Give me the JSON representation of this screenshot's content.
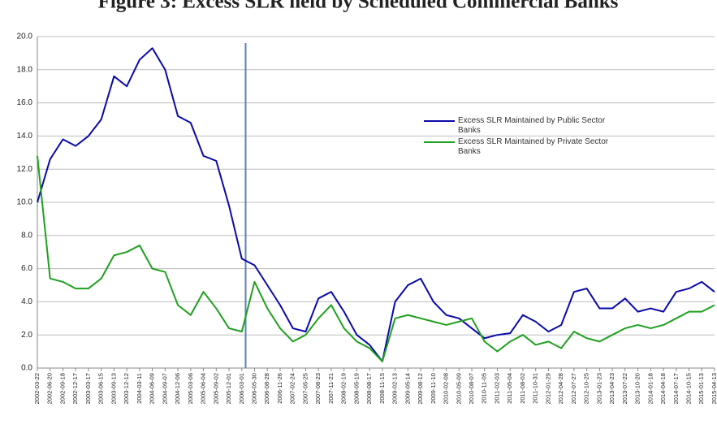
{
  "chart_data": {
    "type": "line",
    "title": "Figure 3: Excess SLR held by Scheduled Commercial Banks",
    "categories": [
      "2002-03-22",
      "2002-06-20",
      "2002-09-18",
      "2002-12-17",
      "2003-03-17",
      "2003-06-15",
      "2003-09-13",
      "2003-12-12",
      "2004-03-11",
      "2004-06-09",
      "2004-09-07",
      "2004-12-06",
      "2005-03-06",
      "2005-06-04",
      "2005-09-02",
      "2005-12-01",
      "2006-03-01",
      "2006-05-30",
      "2006-08-28",
      "2006-11-26",
      "2007-02-24",
      "2007-05-25",
      "2007-08-23",
      "2007-11-21",
      "2008-02-19",
      "2008-05-19",
      "2008-08-17",
      "2008-11-15",
      "2009-02-13",
      "2009-05-14",
      "2009-08-12",
      "2009-11-10",
      "2010-02-08",
      "2010-05-09",
      "2010-08-07",
      "2010-11-05",
      "2011-02-03",
      "2011-05-04",
      "2011-08-02",
      "2011-10-31",
      "2012-01-29",
      "2012-04-28",
      "2012-07-27",
      "2012-10-25",
      "2013-01-23",
      "2013-04-23",
      "2013-07-22",
      "2013-10-20",
      "2014-01-18",
      "2014-04-18",
      "2014-07-17",
      "2014-10-15",
      "2015-01-13",
      "2015-04-13"
    ],
    "series": [
      {
        "name": "Excess SLR Maintained by Public Sector Banks",
        "color": "#0a0aa8",
        "values": [
          10.0,
          12.6,
          13.8,
          13.4,
          14.0,
          15.0,
          17.6,
          17.0,
          18.6,
          19.3,
          18.0,
          15.2,
          14.8,
          12.8,
          12.5,
          9.8,
          6.6,
          6.2,
          5.0,
          3.8,
          2.4,
          2.2,
          4.2,
          4.6,
          3.4,
          2.0,
          1.4,
          0.4,
          4.0,
          5.0,
          5.4,
          4.0,
          3.2,
          3.0,
          2.4,
          1.8,
          2.0,
          2.1,
          3.2,
          2.8,
          2.2,
          2.6,
          4.6,
          4.8,
          3.6,
          3.6,
          4.2,
          3.4,
          3.6,
          3.4,
          4.6,
          4.8,
          5.2,
          4.6
        ]
      },
      {
        "name": "Excess SLR Maintained by Private Sector Banks",
        "color": "#1fa01f",
        "values": [
          12.8,
          5.4,
          5.2,
          4.8,
          4.8,
          5.4,
          6.8,
          7.0,
          7.4,
          6.0,
          5.8,
          3.8,
          3.2,
          4.6,
          3.6,
          2.4,
          2.2,
          5.2,
          3.6,
          2.4,
          1.6,
          2.0,
          3.0,
          3.8,
          2.4,
          1.6,
          1.2,
          0.4,
          3.0,
          3.2,
          3.0,
          2.8,
          2.6,
          2.8,
          3.0,
          1.6,
          1.0,
          1.6,
          2.0,
          1.4,
          1.6,
          1.2,
          2.2,
          1.8,
          1.6,
          2.0,
          2.4,
          2.6,
          2.4,
          2.6,
          3.0,
          3.4,
          3.4,
          3.8
        ]
      }
    ],
    "ylim": [
      0,
      20
    ],
    "yticks": [
      {
        "value": 0,
        "label": "0.0"
      },
      {
        "value": 2,
        "label": "2.0"
      },
      {
        "value": 4,
        "label": "4.0"
      },
      {
        "value": 6,
        "label": "6.0"
      },
      {
        "value": 8,
        "label": "8.0"
      },
      {
        "value": 10,
        "label": "10.0"
      },
      {
        "value": 12,
        "label": "12.0"
      },
      {
        "value": 14,
        "label": "14.0"
      },
      {
        "value": 16,
        "label": "16.0"
      },
      {
        "value": 18,
        "label": "18.0"
      },
      {
        "value": 20,
        "label": "20.0"
      }
    ],
    "grid": true
  }
}
